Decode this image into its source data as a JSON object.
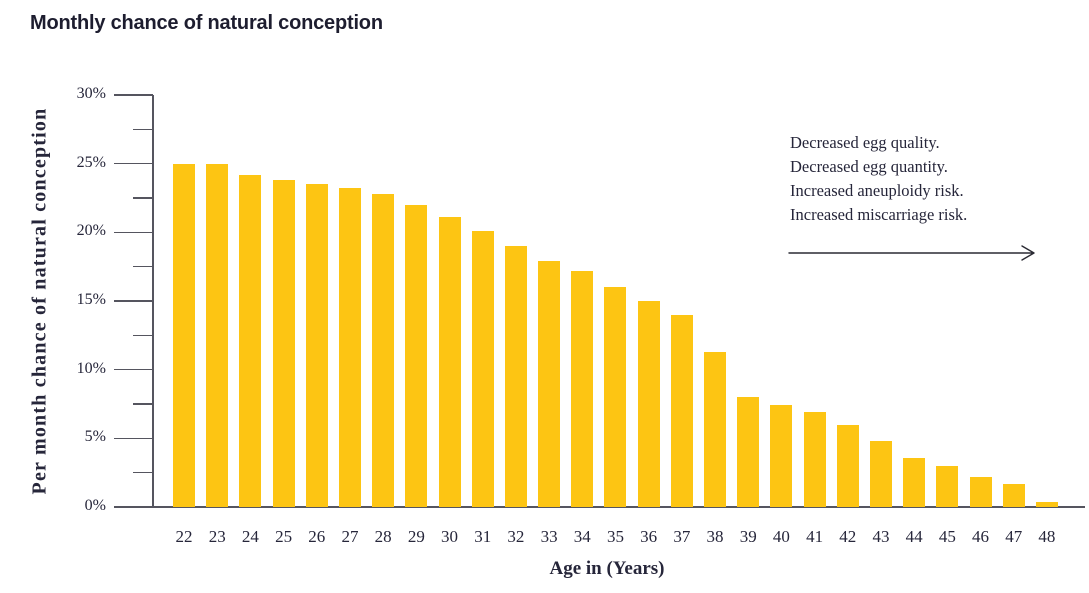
{
  "chart_data": {
    "type": "bar",
    "title": "Monthly chance of natural conception",
    "xlabel": "Age in (Years)",
    "ylabel": "Per month chance of natural conception",
    "categories": [
      "22",
      "23",
      "24",
      "25",
      "26",
      "27",
      "28",
      "29",
      "30",
      "31",
      "32",
      "33",
      "34",
      "35",
      "36",
      "37",
      "38",
      "39",
      "40",
      "41",
      "42",
      "43",
      "44",
      "45",
      "46",
      "47",
      "48"
    ],
    "values": [
      25.0,
      25.0,
      24.2,
      23.8,
      23.5,
      23.2,
      22.8,
      22.0,
      21.1,
      20.1,
      19.0,
      17.9,
      17.2,
      16.0,
      15.0,
      14.0,
      11.3,
      8.0,
      7.4,
      6.9,
      6.0,
      4.8,
      3.6,
      3.0,
      2.2,
      1.7,
      0.4
    ],
    "ylim": [
      0,
      30
    ],
    "y_major_ticks": [
      0,
      5,
      10,
      15,
      20,
      25,
      30
    ],
    "y_tick_labels": [
      "0%",
      "5%",
      "10%",
      "15%",
      "20%",
      "25%",
      "30%"
    ],
    "y_minor_tick_step": 2.5,
    "grid": false,
    "legend_position": "none",
    "bar_color": "#fdc513",
    "axis_color": "#55555f",
    "text_color": "#26263a",
    "title_color": "#1d1d2f"
  },
  "annotation": {
    "lines": [
      "Decreased egg quality.",
      "Decreased egg quantity.",
      "Increased aneuploidy risk.",
      "Increased miscarriage risk."
    ],
    "arrow_icon": "right-arrow"
  }
}
